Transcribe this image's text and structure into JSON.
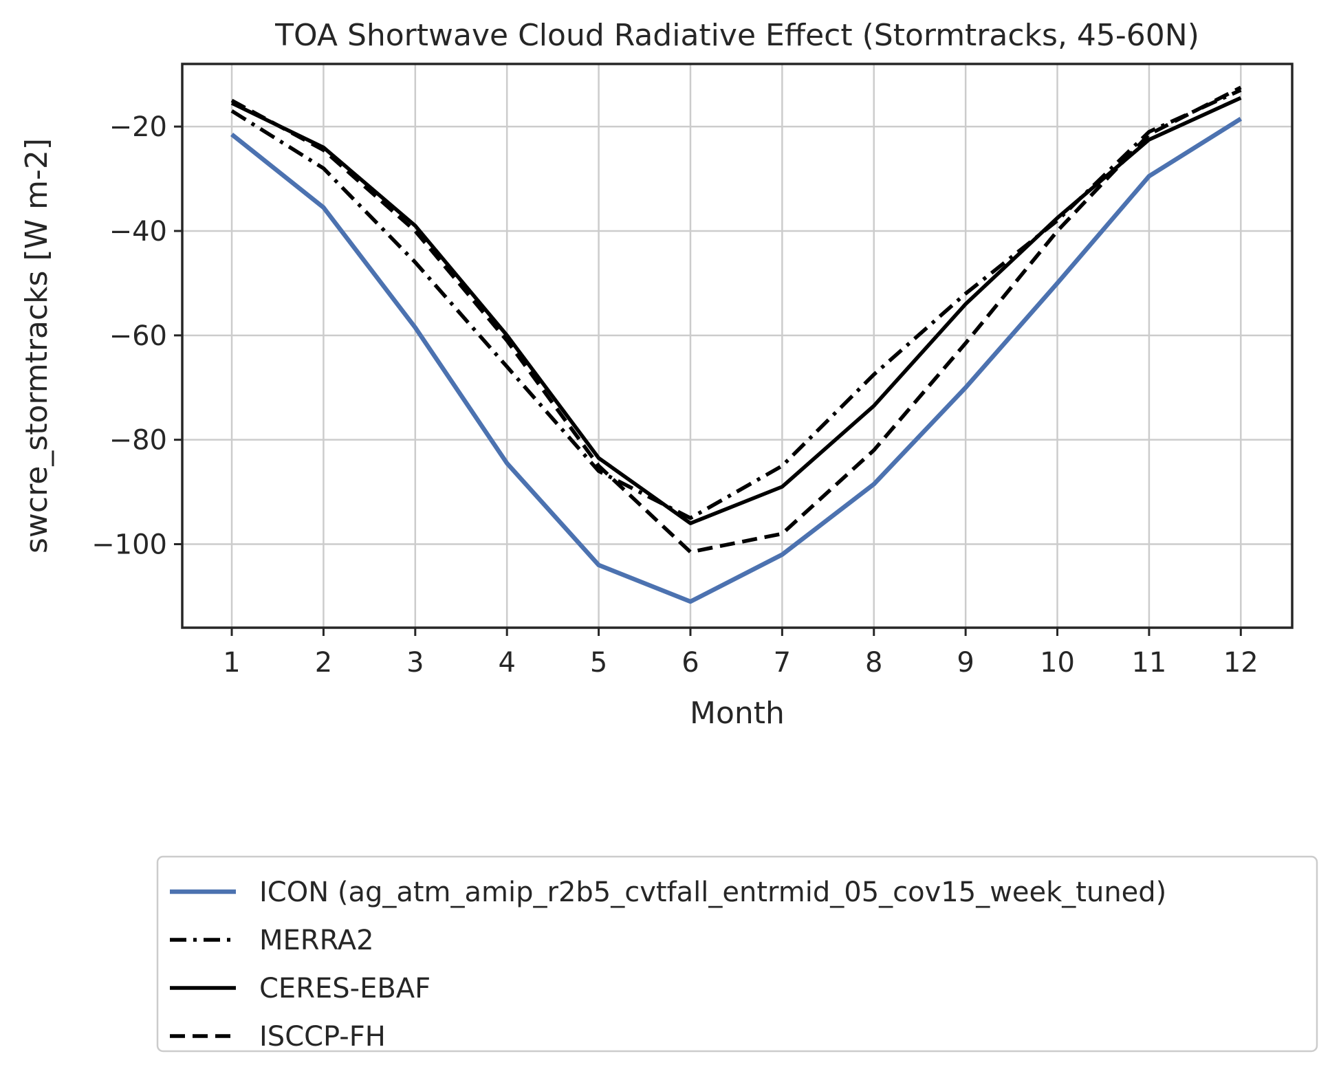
{
  "chart_data": {
    "type": "line",
    "title": "TOA Shortwave Cloud Radiative Effect (Stormtracks, 45-60N)",
    "xlabel": "Month",
    "ylabel": "swcre_stormtracks [W m-2]",
    "x": [
      1,
      2,
      3,
      4,
      5,
      6,
      7,
      8,
      9,
      10,
      11,
      12
    ],
    "xlim": [
      0.46,
      12.56
    ],
    "ylim": [
      -116,
      -8
    ],
    "xticks": [
      1,
      2,
      3,
      4,
      5,
      6,
      7,
      8,
      9,
      10,
      11,
      12
    ],
    "yticks": [
      -100,
      -80,
      -60,
      -40,
      -20
    ],
    "ytick_labels": [
      "−100",
      "−80",
      "−60",
      "−40",
      "−20"
    ],
    "grid": true,
    "legend_position": "below",
    "series": [
      {
        "name": "ICON (ag_atm_amip_r2b5_cvtfall_entrmid_05_cov15_week_tuned)",
        "color": "#4c72b0",
        "style": "solid",
        "values": [
          -21.5,
          -35.5,
          -58.5,
          -84.5,
          -104,
          -111,
          -102,
          -88.5,
          -70,
          -50,
          -29.5,
          -18.5
        ]
      },
      {
        "name": "MERRA2",
        "color": "#000000",
        "style": "dashdot",
        "values": [
          -17,
          -28,
          -46,
          -66,
          -86,
          -95,
          -85,
          -67.5,
          -52,
          -38,
          -21,
          -13
        ]
      },
      {
        "name": "CERES-EBAF",
        "color": "#000000",
        "style": "solid",
        "values": [
          -15.5,
          -24,
          -39,
          -60,
          -83.5,
          -96,
          -89,
          -73.5,
          -54,
          -37.5,
          -22.5,
          -14.5
        ]
      },
      {
        "name": "ISCCP-FH",
        "color": "#000000",
        "style": "dashed",
        "values": [
          -15,
          -24.5,
          -40,
          -61,
          -85,
          -101.5,
          -98,
          -82,
          -61.5,
          -40,
          -21.5,
          -12.5
        ]
      }
    ]
  }
}
